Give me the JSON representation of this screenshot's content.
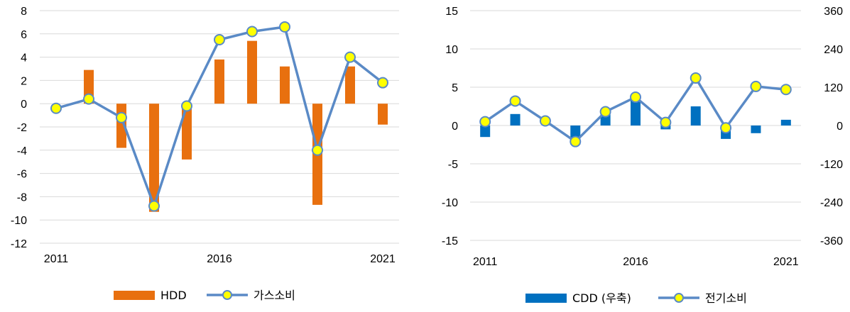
{
  "chart_data": [
    {
      "type": "bar+line",
      "x": [
        2011,
        2012,
        2013,
        2014,
        2015,
        2016,
        2017,
        2018,
        2019,
        2020,
        2021
      ],
      "x_tick_labels": [
        "2011",
        "2016",
        "2021"
      ],
      "ylim": [
        -12,
        8
      ],
      "y_ticks": [
        8,
        6,
        4,
        2,
        0,
        -2,
        -4,
        -6,
        -8,
        -10,
        -12
      ],
      "grid": true,
      "legend_position": "bottom",
      "series": [
        {
          "name": "HDD",
          "kind": "bar",
          "color": "#e8700f",
          "values": [
            0,
            2.9,
            -3.8,
            -9.3,
            -4.8,
            3.8,
            5.4,
            3.2,
            -8.7,
            3.2,
            -1.8
          ]
        },
        {
          "name": "가스소비",
          "kind": "line",
          "color": "#5a8ac6",
          "marker_color": "#ffff00",
          "values": [
            -0.4,
            0.4,
            -1.2,
            -8.8,
            -0.2,
            5.5,
            6.2,
            6.6,
            -4.0,
            4.0,
            1.8
          ]
        }
      ]
    },
    {
      "type": "bar+line",
      "x": [
        2011,
        2012,
        2013,
        2014,
        2015,
        2016,
        2017,
        2018,
        2019,
        2020,
        2021
      ],
      "x_tick_labels": [
        "2011",
        "2016",
        "2021"
      ],
      "ylim": [
        -15,
        15
      ],
      "y_ticks": [
        15,
        10,
        5,
        0,
        -5,
        -10,
        -15
      ],
      "y2lim": [
        -360,
        360
      ],
      "y2_ticks": [
        "360",
        "240",
        "120",
        "0",
        "-120",
        "-240",
        "-360"
      ],
      "grid": true,
      "legend_position": "bottom",
      "series": [
        {
          "name": "CDD (우축)",
          "kind": "bar",
          "axis": "right",
          "color": "#0070c0",
          "values": [
            -36,
            36,
            0,
            -60,
            48,
            84,
            -12,
            60,
            -42,
            -24,
            18
          ]
        },
        {
          "name": "전기소비",
          "kind": "line",
          "axis": "left",
          "color": "#5a8ac6",
          "marker_color": "#ffff00",
          "values": [
            0.5,
            3.2,
            0.6,
            -2.1,
            1.8,
            3.7,
            0.4,
            6.2,
            -0.3,
            5.1,
            4.7
          ]
        }
      ]
    }
  ]
}
